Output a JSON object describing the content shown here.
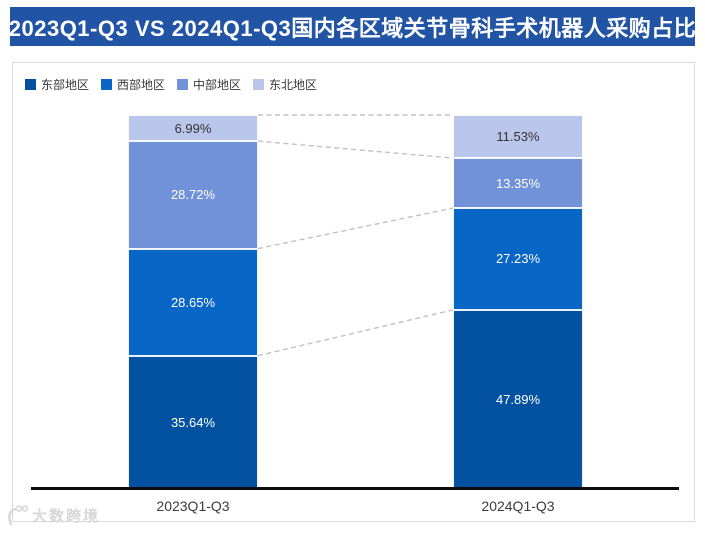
{
  "header": {
    "title": "2023Q1-Q3 VS 2024Q1-Q3国内各区域关节骨科手术机器人采购占比",
    "bg_color": "#2254a6",
    "text_color": "#ffffff"
  },
  "watermark": {
    "text": "大数跨境"
  },
  "chart_data": {
    "type": "bar",
    "stacked": true,
    "title": "2023Q1-Q3 VS 2024Q1-Q3国内各区域关节骨科手术机器人采购占比",
    "categories": [
      "2023Q1-Q3",
      "2024Q1-Q3"
    ],
    "series": [
      {
        "name": "东部地区",
        "color": "#0352a1",
        "label_color": "#ffffff",
        "values": [
          35.64,
          47.89
        ],
        "display_values": [
          "35.64%",
          "47.89%"
        ]
      },
      {
        "name": "西部地区",
        "color": "#0766c6",
        "label_color": "#ffffff",
        "values": [
          28.65,
          27.23
        ],
        "display_values": [
          "28.65%",
          "27.23%"
        ]
      },
      {
        "name": "中部地区",
        "color": "#7191d9",
        "label_color": "#ffffff",
        "values": [
          28.72,
          13.35
        ],
        "display_values": [
          "28.72%",
          "13.35%"
        ]
      },
      {
        "name": "东北地区",
        "color": "#b9c5ea",
        "label_color": "#333333",
        "values": [
          6.99,
          11.53
        ],
        "display_values": [
          "6.99%",
          "11.53%"
        ]
      }
    ],
    "value_suffix": "%",
    "ylim": [
      0,
      100
    ],
    "grid": false,
    "legend_position": "top-left",
    "connector_lines": true,
    "connector_color": "#c2c2c2",
    "axis_color": "#0c0c0c"
  }
}
